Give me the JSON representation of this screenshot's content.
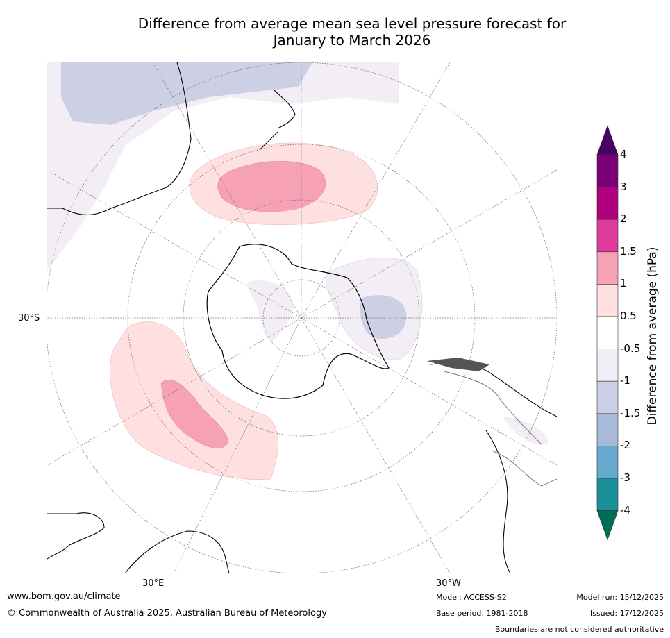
{
  "title_line1": "Difference from average mean sea level pressure forecast for",
  "title_line2": "January to March 2026",
  "map": {
    "lat_label": "30°S",
    "lon_labels": [
      "30°E",
      "30°W"
    ]
  },
  "colorbar": {
    "title": "Difference from average (hPa)",
    "ticks": [
      "4",
      "3",
      "2",
      "1.5",
      "1",
      "0.5",
      "-0.5",
      "-1",
      "-1.5",
      "-2",
      "-3",
      "-4"
    ],
    "colors": [
      "#4b0068",
      "#7b0077",
      "#b1007e",
      "#de3b9c",
      "#f7a1b6",
      "#fde0df",
      "#ffffff",
      "#f3eef5",
      "#cdd0e4",
      "#a8bad8",
      "#67a9cf",
      "#1c9099",
      "#016c59"
    ]
  },
  "footer": {
    "website": "www.bom.gov.au/climate",
    "copyright": "© Commonwealth of Australia 2025, Australian Bureau of Meteorology",
    "model": "Model: ACCESS-S2",
    "base_period": "Base period: 1981-2018",
    "model_run": "Model run: 15/12/2025",
    "issued": "Issued: 17/12/2025",
    "disclaimer": "Boundaries are not considered authoritative"
  }
}
